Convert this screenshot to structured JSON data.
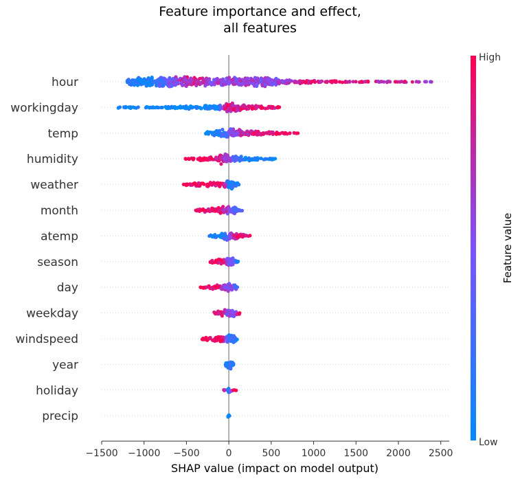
{
  "chart_data": {
    "type": "scatter",
    "title_lines": [
      "Feature importance and effect,",
      "all features"
    ],
    "xlabel": "SHAP value (impact on model output)",
    "xlim": [
      -1500,
      2600
    ],
    "xticks": [
      -1500,
      -1000,
      -500,
      0,
      500,
      1000,
      1500,
      2000,
      2500
    ],
    "xtick_labels": [
      "−1500",
      "−1000",
      "−500",
      "0",
      "500",
      "1000",
      "1500",
      "2000",
      "2500"
    ],
    "colorbar": {
      "label": "Feature value",
      "high_label": "High",
      "low_label": "Low",
      "low_color": "#008bfb",
      "mid_color": "#7c52ff",
      "high_color": "#ff0052"
    },
    "features": [
      {
        "name": "hour",
        "min": -1200,
        "max": 2410,
        "density": [
          [
            -1200,
            0.5,
            0.2
          ],
          [
            -1000,
            1.0,
            0.1
          ],
          [
            -900,
            1.0,
            0.15
          ],
          [
            -750,
            0.8,
            0.35
          ],
          [
            -550,
            0.9,
            0.7
          ],
          [
            -400,
            0.8,
            0.85
          ],
          [
            -200,
            0.6,
            0.6
          ],
          [
            0,
            0.8,
            0.55
          ],
          [
            200,
            0.7,
            0.6
          ],
          [
            450,
            0.9,
            0.55
          ],
          [
            600,
            0.5,
            0.6
          ],
          [
            900,
            0.25,
            0.85
          ],
          [
            1200,
            0.2,
            0.9
          ],
          [
            1600,
            0.12,
            0.85
          ],
          [
            2000,
            0.1,
            0.8
          ],
          [
            2400,
            0.06,
            0.55
          ]
        ]
      },
      {
        "name": "workingday",
        "min": -1320,
        "max": 620,
        "density": [
          [
            -1320,
            0.15,
            0.02
          ],
          [
            -1100,
            0.2,
            0.02
          ],
          [
            -850,
            0.05,
            0.02
          ],
          [
            -700,
            0.25,
            0.02
          ],
          [
            -400,
            0.3,
            0.02
          ],
          [
            -150,
            0.35,
            0.05
          ],
          [
            -50,
            0.6,
            0.8
          ],
          [
            20,
            1.0,
            0.85
          ],
          [
            100,
            0.7,
            0.8
          ],
          [
            300,
            0.35,
            0.9
          ],
          [
            600,
            0.15,
            0.95
          ]
        ]
      },
      {
        "name": "temp",
        "min": -280,
        "max": 840,
        "density": [
          [
            -280,
            0.2,
            0.05
          ],
          [
            -150,
            0.45,
            0.1
          ],
          [
            -50,
            0.8,
            0.25
          ],
          [
            20,
            0.9,
            0.5
          ],
          [
            150,
            0.6,
            0.75
          ],
          [
            350,
            0.35,
            0.9
          ],
          [
            600,
            0.2,
            0.95
          ],
          [
            840,
            0.05,
            1.0
          ]
        ]
      },
      {
        "name": "humidity",
        "min": -520,
        "max": 600,
        "density": [
          [
            -520,
            0.1,
            0.95
          ],
          [
            -350,
            0.3,
            0.95
          ],
          [
            -150,
            0.6,
            0.9
          ],
          [
            -50,
            1.0,
            0.7
          ],
          [
            50,
            0.6,
            0.35
          ],
          [
            200,
            0.35,
            0.15
          ],
          [
            400,
            0.25,
            0.05
          ],
          [
            600,
            0.1,
            0.02
          ]
        ]
      },
      {
        "name": "weather",
        "min": -540,
        "max": 120,
        "density": [
          [
            -540,
            0.15,
            0.98
          ],
          [
            -400,
            0.3,
            0.98
          ],
          [
            -200,
            0.35,
            0.95
          ],
          [
            -60,
            0.45,
            0.9
          ],
          [
            0,
            0.9,
            0.1
          ],
          [
            60,
            0.6,
            0.05
          ],
          [
            120,
            0.2,
            0.05
          ]
        ]
      },
      {
        "name": "month",
        "min": -400,
        "max": 160,
        "density": [
          [
            -400,
            0.15,
            0.95
          ],
          [
            -250,
            0.35,
            0.9
          ],
          [
            -100,
            0.6,
            0.85
          ],
          [
            0,
            0.7,
            0.6
          ],
          [
            60,
            0.7,
            0.4
          ],
          [
            120,
            0.4,
            0.3
          ],
          [
            160,
            0.1,
            0.25
          ]
        ]
      },
      {
        "name": "atemp",
        "min": -230,
        "max": 250,
        "density": [
          [
            -230,
            0.2,
            0.05
          ],
          [
            -100,
            0.35,
            0.05
          ],
          [
            0,
            0.8,
            0.4
          ],
          [
            60,
            0.7,
            0.8
          ],
          [
            150,
            0.35,
            0.9
          ],
          [
            250,
            0.1,
            0.95
          ]
        ]
      },
      {
        "name": "season",
        "min": -220,
        "max": 110,
        "density": [
          [
            -220,
            0.2,
            0.95
          ],
          [
            -120,
            0.45,
            0.9
          ],
          [
            -30,
            0.7,
            0.75
          ],
          [
            0,
            0.8,
            0.5
          ],
          [
            50,
            0.7,
            0.45
          ],
          [
            110,
            0.15,
            0.1
          ]
        ]
      },
      {
        "name": "day",
        "min": -370,
        "max": 120,
        "density": [
          [
            -370,
            0.04,
            0.98
          ],
          [
            -200,
            0.3,
            0.9
          ],
          [
            -80,
            0.5,
            0.75
          ],
          [
            0,
            0.8,
            0.5
          ],
          [
            60,
            0.6,
            0.4
          ],
          [
            120,
            0.2,
            0.4
          ]
        ]
      },
      {
        "name": "weekday",
        "min": -180,
        "max": 130,
        "density": [
          [
            -180,
            0.2,
            0.9
          ],
          [
            -80,
            0.5,
            0.85
          ],
          [
            0,
            0.85,
            0.5
          ],
          [
            60,
            0.6,
            0.55
          ],
          [
            130,
            0.15,
            0.9
          ]
        ]
      },
      {
        "name": "windspeed",
        "min": -320,
        "max": 110,
        "density": [
          [
            -320,
            0.2,
            0.98
          ],
          [
            -200,
            0.4,
            0.95
          ],
          [
            -80,
            0.5,
            0.9
          ],
          [
            0,
            0.8,
            0.3
          ],
          [
            60,
            0.6,
            0.2
          ],
          [
            110,
            0.15,
            0.1
          ]
        ]
      },
      {
        "name": "year",
        "min": -40,
        "max": 60,
        "density": [
          [
            -40,
            0.3,
            0.1
          ],
          [
            0,
            0.9,
            0.1
          ],
          [
            40,
            0.6,
            0.15
          ],
          [
            60,
            0.2,
            0.1
          ]
        ]
      },
      {
        "name": "holiday",
        "min": -60,
        "max": 90,
        "density": [
          [
            -60,
            0.08,
            0.9
          ],
          [
            0,
            0.5,
            0.05
          ],
          [
            40,
            0.1,
            0.9
          ],
          [
            90,
            0.08,
            0.95
          ]
        ]
      },
      {
        "name": "precip",
        "min": -10,
        "max": 10,
        "density": [
          [
            -10,
            0.3,
            0.02
          ],
          [
            0,
            0.6,
            0.02
          ],
          [
            10,
            0.3,
            0.02
          ]
        ]
      }
    ]
  }
}
